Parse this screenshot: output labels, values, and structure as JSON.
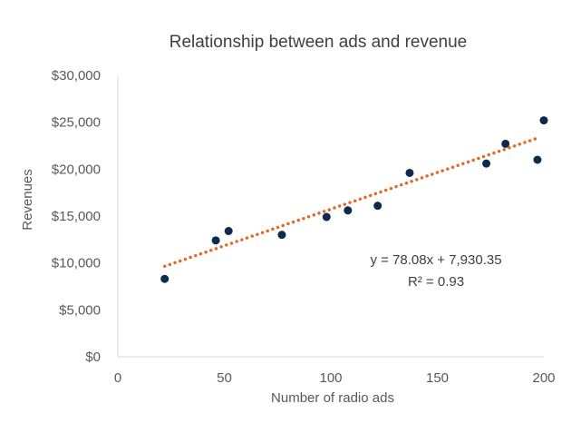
{
  "chart_data": {
    "type": "scatter",
    "title": "Relationship between ads and revenue",
    "xlabel": "Number of radio ads",
    "ylabel": "Revenues",
    "xlim": [
      0,
      200
    ],
    "ylim": [
      0,
      30000
    ],
    "x_ticks": [
      0,
      50,
      100,
      150,
      200
    ],
    "y_ticks": [
      0,
      5000,
      10000,
      15000,
      20000,
      25000,
      30000
    ],
    "y_tick_labels": [
      "$0",
      "$5,000",
      "$10,000",
      "$15,000",
      "$20,000",
      "$25,000",
      "$30,000"
    ],
    "grid": false,
    "legend": "none",
    "series": [
      {
        "x": [
          22,
          46,
          52,
          77,
          98,
          108,
          122,
          137,
          173,
          182,
          197,
          200
        ],
        "y": [
          8300,
          12400,
          13400,
          13000,
          14900,
          15600,
          16100,
          19600,
          20600,
          22700,
          21000,
          25200
        ],
        "color": "#0f2a4f"
      }
    ],
    "trendline": {
      "type": "linear",
      "slope": 78.08,
      "intercept": 7930.35,
      "x_range": [
        22,
        197
      ],
      "style": "dotted",
      "color": "#e06a28"
    },
    "annotations": [
      "y = 78.08x + 7,930.35",
      "R² = 0.93"
    ]
  }
}
